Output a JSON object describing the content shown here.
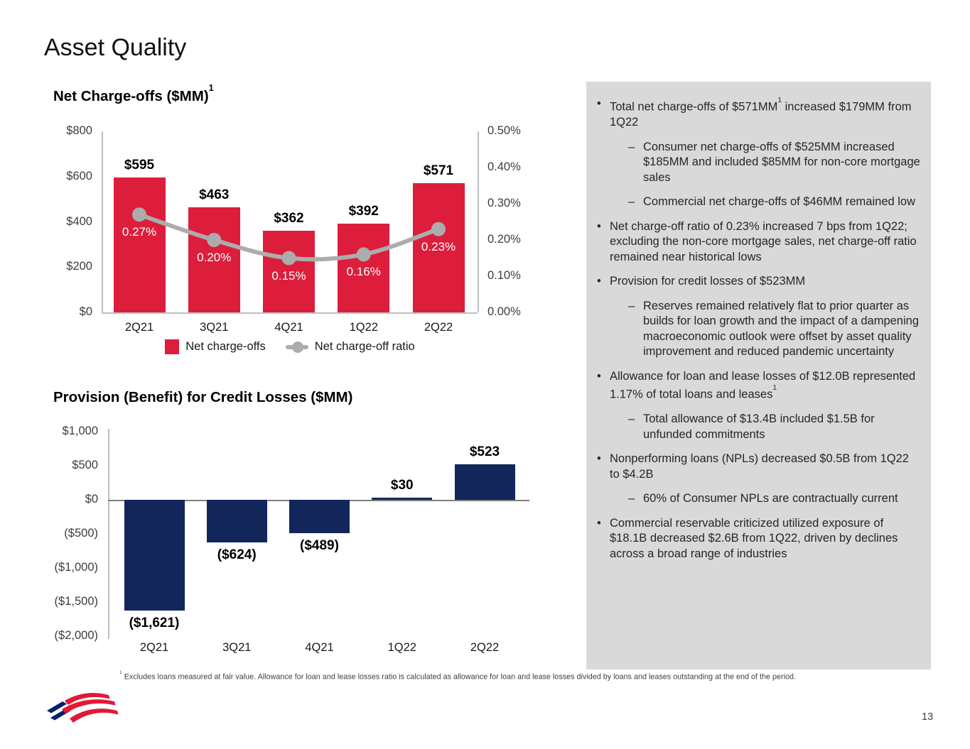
{
  "page": {
    "title": "Asset Quality",
    "page_number": "13",
    "footnote_sup": "1",
    "footnote": "Excludes loans measured at fair value. Allowance for loan and lease losses ratio is calculated as allowance for loan and lease losses divided by loans and leases outstanding at the end of the period."
  },
  "colors": {
    "red": "#dc1e3c",
    "navy": "#13265b",
    "line_gray": "#acacac",
    "panel_bg": "#d9d9d9",
    "logo_red": "#e31837",
    "logo_blue": "#012169"
  },
  "chart_data": [
    {
      "type": "bar+line",
      "title": "Net Charge-offs ($MM)",
      "title_sup": "1",
      "categories": [
        "2Q21",
        "3Q21",
        "4Q21",
        "1Q22",
        "2Q22"
      ],
      "series": [
        {
          "name": "Net charge-offs",
          "type": "bar",
          "values": [
            595,
            463,
            362,
            392,
            571
          ],
          "labels": [
            "$595",
            "$463",
            "$362",
            "$392",
            "$571"
          ]
        },
        {
          "name": "Net charge-off ratio",
          "type": "line",
          "values": [
            0.27,
            0.2,
            0.15,
            0.16,
            0.23
          ],
          "labels": [
            "0.27%",
            "0.20%",
            "0.15%",
            "0.16%",
            "0.23%"
          ]
        }
      ],
      "left_axis": {
        "min": 0,
        "max": 800,
        "ticks": [
          "$800",
          "$600",
          "$400",
          "$200",
          "$0"
        ]
      },
      "right_axis": {
        "min": 0,
        "max": 0.5,
        "ticks": [
          "0.50%",
          "0.40%",
          "0.30%",
          "0.20%",
          "0.10%",
          "0.00%"
        ]
      },
      "legend_position": "bottom-center",
      "grid": false
    },
    {
      "type": "bar",
      "title": "Provision (Benefit) for Credit Losses ($MM)",
      "categories": [
        "2Q21",
        "3Q21",
        "4Q21",
        "1Q22",
        "2Q22"
      ],
      "values": [
        -1621,
        -624,
        -489,
        30,
        523
      ],
      "labels": [
        "($1,621)",
        "($624)",
        "($489)",
        "$30",
        "$523"
      ],
      "y_axis": {
        "min": -2000,
        "max": 1000,
        "ticks": [
          "$1,000",
          "$500",
          "$0",
          "($500)",
          "($1,000)",
          "($1,500)",
          "($2,000)"
        ]
      },
      "grid": false
    }
  ],
  "sidebar": {
    "bullets": [
      {
        "level": 1,
        "segments": [
          {
            "text": "Total net charge-offs of $571MM"
          },
          {
            "sup": "1"
          },
          {
            "text": " increased $179MM from 1Q22"
          }
        ]
      },
      {
        "level": 2,
        "segments": [
          {
            "text": "Consumer net charge-offs of $525MM increased $185MM and included $85MM for non-core mortgage sales"
          }
        ]
      },
      {
        "level": 2,
        "segments": [
          {
            "text": "Commercial net charge-offs of $46MM remained low"
          }
        ]
      },
      {
        "level": 1,
        "segments": [
          {
            "text": "Net charge-off ratio of 0.23% increased 7 bps from 1Q22; excluding the non-core mortgage sales, net charge-off ratio remained near historical lows"
          }
        ]
      },
      {
        "level": 1,
        "segments": [
          {
            "text": "Provision for credit losses of $523MM"
          }
        ]
      },
      {
        "level": 2,
        "segments": [
          {
            "text": "Reserves remained relatively flat to prior quarter as builds for loan growth and the impact of a dampening macroeconomic outlook were offset by asset quality improvement and reduced pandemic uncertainty"
          }
        ]
      },
      {
        "level": 1,
        "segments": [
          {
            "text": "Allowance for loan and lease losses of $12.0B represented 1.17% of total loans and leases"
          },
          {
            "sup": "1"
          }
        ]
      },
      {
        "level": 2,
        "segments": [
          {
            "text": "Total allowance of $13.4B included $1.5B for unfunded commitments"
          }
        ]
      },
      {
        "level": 1,
        "segments": [
          {
            "text": "Nonperforming loans (NPLs) decreased $0.5B from 1Q22 to $4.2B"
          }
        ]
      },
      {
        "level": 2,
        "segments": [
          {
            "text": "60% of Consumer NPLs are contractually current"
          }
        ]
      },
      {
        "level": 1,
        "segments": [
          {
            "text": "Commercial reservable criticized utilized exposure of $18.1B decreased $2.6B from 1Q22, driven by declines across a broad range of industries"
          }
        ]
      }
    ]
  }
}
